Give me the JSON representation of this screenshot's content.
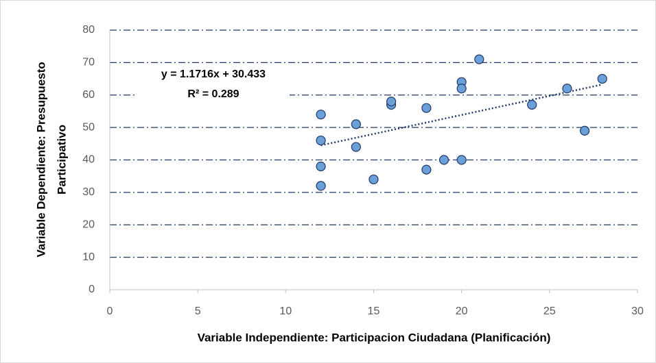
{
  "chart_data": {
    "type": "scatter",
    "xlabel": "Variable Independiente: Participacion Ciudadana (Planificación)",
    "ylabel": [
      "Variable Dependiente: Presupuesto",
      "Participativo"
    ],
    "series": [
      {
        "color": "#6a9fd8",
        "x": [
          12,
          12,
          12,
          12,
          14,
          14,
          15,
          16,
          16,
          18,
          18,
          19,
          20,
          20,
          20,
          21,
          24,
          26,
          27,
          28
        ],
        "values": [
          54,
          46,
          38,
          32,
          51,
          44,
          34,
          57,
          58,
          56,
          37,
          40,
          40,
          64,
          62,
          71,
          57,
          62,
          49,
          65
        ]
      }
    ],
    "trendline": {
      "equation": "y = 1.1716x + 30.433",
      "r2": "R² = 0.289",
      "slope": 1.1716,
      "intercept": 30.433,
      "color": "#1f3864"
    },
    "xlim": [
      0,
      30
    ],
    "xticks": [
      0,
      5,
      10,
      15,
      20,
      25,
      30
    ],
    "ylim": [
      0,
      80
    ],
    "yticks": [
      0,
      10,
      20,
      30,
      40,
      50,
      60,
      70,
      80
    ],
    "grid": true
  }
}
